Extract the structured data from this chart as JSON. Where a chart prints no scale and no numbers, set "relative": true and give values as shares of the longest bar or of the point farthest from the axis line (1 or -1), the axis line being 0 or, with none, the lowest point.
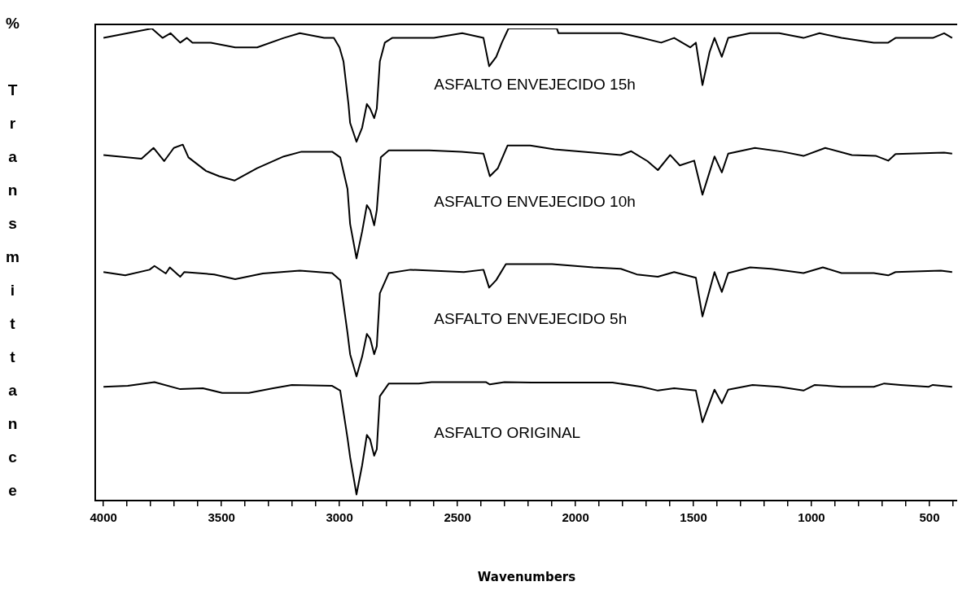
{
  "chart_data": {
    "type": "line",
    "xlabel": "Wavenumbers",
    "ylabel": "% Transmittance",
    "relative": true,
    "grid": false,
    "legend": false,
    "marker": "none",
    "line_style": "solid",
    "xlim": [
      4035,
      400
    ],
    "xticks": [
      4000,
      {
        "value": 3900,
        "label": null
      },
      {
        "value": 3800,
        "label": null
      },
      {
        "value": 3700,
        "label": null
      },
      {
        "value": 3600,
        "label": null
      },
      3500,
      {
        "value": 3400,
        "label": null
      },
      {
        "value": 3300,
        "label": null
      },
      {
        "value": 3200,
        "label": null
      },
      {
        "value": 3100,
        "label": null
      },
      3000,
      {
        "value": 2900,
        "label": null
      },
      {
        "value": 2800,
        "label": null
      },
      {
        "value": 2700,
        "label": null
      },
      {
        "value": 2600,
        "label": null
      },
      2500,
      {
        "value": 2400,
        "label": null
      },
      {
        "value": 2300,
        "label": null
      },
      {
        "value": 2200,
        "label": null
      },
      {
        "value": 2100,
        "label": null
      },
      2000,
      {
        "value": 1900,
        "label": null
      },
      {
        "value": 1800,
        "label": null
      },
      {
        "value": 1700,
        "label": null
      },
      {
        "value": 1600,
        "label": null
      },
      1500,
      {
        "value": 1400,
        "label": null
      },
      {
        "value": 1300,
        "label": null
      },
      {
        "value": 1200,
        "label": null
      },
      {
        "value": 1100,
        "label": null
      },
      1000,
      {
        "value": 900,
        "label": null
      },
      {
        "value": 800,
        "label": null
      },
      {
        "value": 700,
        "label": null
      },
      {
        "value": 600,
        "label": null
      },
      500,
      {
        "value": 400,
        "label": null
      }
    ],
    "series": [
      {
        "name": "ASFALTO ENVEJECIDO 15h",
        "color": "#000000",
        "x": [
          4000,
          3795,
          3750,
          3716,
          3675,
          3647,
          3623,
          3545,
          3442,
          3349,
          3236,
          3168,
          3065,
          3024,
          3000,
          2983,
          2962,
          2955,
          2928,
          2904,
          2884,
          2870,
          2853,
          2842,
          2829,
          2808,
          2777,
          2600,
          2480,
          2390,
          2366,
          2336,
          2312,
          2284,
          2079,
          2072,
          1925,
          1808,
          1719,
          1637,
          1582,
          1514,
          1490,
          1462,
          1432,
          1411,
          1380,
          1353,
          1260,
          1137,
          1034,
          966,
          873,
          736,
          675,
          644,
          486,
          438,
          404
        ],
        "values": [
          0.98,
          1.0,
          0.98,
          0.99,
          0.97,
          0.98,
          0.97,
          0.97,
          0.96,
          0.96,
          0.98,
          0.99,
          0.98,
          0.98,
          0.96,
          0.93,
          0.84,
          0.8,
          0.76,
          0.79,
          0.84,
          0.83,
          0.81,
          0.83,
          0.93,
          0.97,
          0.98,
          0.98,
          0.99,
          0.98,
          0.92,
          0.94,
          0.97,
          1.0,
          1.0,
          0.99,
          0.99,
          0.99,
          0.98,
          0.97,
          0.98,
          0.96,
          0.97,
          0.88,
          0.95,
          0.98,
          0.94,
          0.98,
          0.99,
          0.99,
          0.98,
          0.99,
          0.98,
          0.97,
          0.97,
          0.98,
          0.98,
          0.99,
          0.98
        ]
      },
      {
        "name": "ASFALTO ENVEJECIDO 10h",
        "color": "#000000",
        "x": [
          4000,
          3839,
          3788,
          3743,
          3702,
          3664,
          3640,
          3565,
          3510,
          3445,
          3349,
          3236,
          3161,
          3031,
          2997,
          2966,
          2955,
          2928,
          2904,
          2884,
          2870,
          2853,
          2842,
          2825,
          2791,
          2664,
          2620,
          2483,
          2390,
          2363,
          2329,
          2288,
          2192,
          2089,
          1925,
          1808,
          1764,
          1695,
          1651,
          1599,
          1558,
          1497,
          1462,
          1411,
          1380,
          1353,
          1240,
          1123,
          1034,
          942,
          829,
          726,
          675,
          644,
          438,
          404
        ],
        "values": [
          0.732,
          0.724,
          0.747,
          0.719,
          0.747,
          0.754,
          0.727,
          0.698,
          0.687,
          0.678,
          0.704,
          0.729,
          0.739,
          0.739,
          0.727,
          0.66,
          0.586,
          0.513,
          0.57,
          0.626,
          0.615,
          0.583,
          0.615,
          0.727,
          0.742,
          0.742,
          0.742,
          0.739,
          0.735,
          0.687,
          0.704,
          0.752,
          0.752,
          0.744,
          0.737,
          0.732,
          0.74,
          0.719,
          0.7,
          0.732,
          0.71,
          0.72,
          0.648,
          0.729,
          0.695,
          0.735,
          0.747,
          0.739,
          0.73,
          0.747,
          0.732,
          0.73,
          0.72,
          0.734,
          0.737,
          0.735
        ]
      },
      {
        "name": "ASFALTO ENVEJECIDO 5h",
        "color": "#000000",
        "x": [
          4000,
          3908,
          3805,
          3784,
          3736,
          3719,
          3675,
          3658,
          3531,
          3442,
          3325,
          3168,
          3031,
          2997,
          2966,
          2955,
          2928,
          2904,
          2884,
          2870,
          2853,
          2842,
          2829,
          2791,
          2699,
          2473,
          2390,
          2366,
          2336,
          2295,
          2099,
          1925,
          1808,
          1740,
          1651,
          1582,
          1490,
          1462,
          1411,
          1380,
          1353,
          1260,
          1171,
          1034,
          952,
          873,
          736,
          675,
          644,
          452,
          404
        ],
        "values": [
          0.484,
          0.477,
          0.489,
          0.497,
          0.481,
          0.494,
          0.474,
          0.484,
          0.479,
          0.469,
          0.481,
          0.487,
          0.482,
          0.467,
          0.355,
          0.31,
          0.263,
          0.305,
          0.353,
          0.343,
          0.31,
          0.327,
          0.439,
          0.482,
          0.489,
          0.484,
          0.489,
          0.451,
          0.467,
          0.501,
          0.501,
          0.494,
          0.491,
          0.479,
          0.474,
          0.484,
          0.472,
          0.39,
          0.484,
          0.442,
          0.482,
          0.494,
          0.491,
          0.482,
          0.494,
          0.482,
          0.482,
          0.477,
          0.484,
          0.487,
          0.484
        ]
      },
      {
        "name": "ASFALTO ORIGINAL",
        "color": "#000000",
        "x": [
          4000,
          3897,
          3784,
          3675,
          3579,
          3497,
          3384,
          3281,
          3202,
          3031,
          2997,
          2966,
          2955,
          2928,
          2904,
          2884,
          2870,
          2853,
          2842,
          2829,
          2791,
          2664,
          2610,
          2380,
          2363,
          2301,
          2185,
          1843,
          1719,
          1651,
          1582,
          1490,
          1462,
          1411,
          1380,
          1353,
          1250,
          1137,
          1034,
          986,
          873,
          736,
          692,
          623,
          503,
          486,
          404
        ],
        "values": [
          0.241,
          0.243,
          0.251,
          0.236,
          0.238,
          0.228,
          0.228,
          0.238,
          0.245,
          0.243,
          0.233,
          0.132,
          0.092,
          0.013,
          0.075,
          0.139,
          0.129,
          0.095,
          0.109,
          0.221,
          0.248,
          0.248,
          0.251,
          0.251,
          0.246,
          0.251,
          0.25,
          0.25,
          0.241,
          0.233,
          0.238,
          0.233,
          0.166,
          0.235,
          0.206,
          0.235,
          0.245,
          0.241,
          0.233,
          0.245,
          0.241,
          0.241,
          0.248,
          0.245,
          0.241,
          0.245,
          0.241
        ]
      }
    ]
  }
}
